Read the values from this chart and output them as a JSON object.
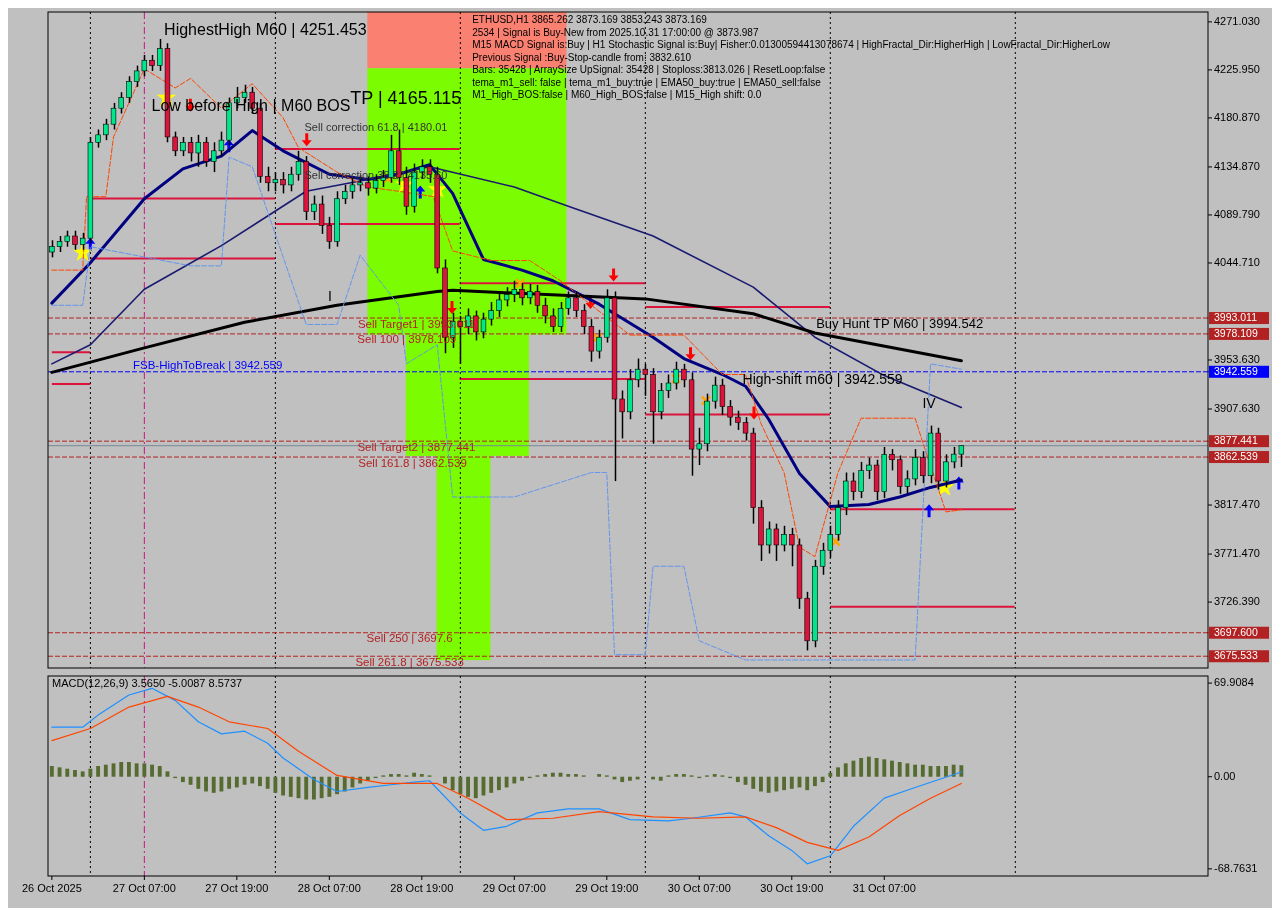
{
  "chart_data": [
    {
      "type": "candlestick",
      "title": "ETHUSD,H1  3865.262 3873.169 3853.243 3873.169",
      "x": [
        "2025-10-26T19:00",
        "2025-10-26T20:00",
        "2025-10-26T21:00",
        "2025-10-26T22:00",
        "2025-10-26T23:00",
        "2025-10-27T00:00",
        "2025-10-27T01:00",
        "2025-10-27T02:00",
        "2025-10-27T03:00",
        "2025-10-27T04:00",
        "2025-10-27T05:00",
        "2025-10-27T06:00",
        "2025-10-27T07:00",
        "2025-10-27T08:00",
        "2025-10-27T09:00",
        "2025-10-27T10:00",
        "2025-10-27T11:00",
        "2025-10-27T12:00",
        "2025-10-27T13:00",
        "2025-10-27T14:00",
        "2025-10-27T15:00",
        "2025-10-27T16:00",
        "2025-10-27T17:00",
        "2025-10-27T18:00",
        "2025-10-27T19:00",
        "2025-10-27T20:00",
        "2025-10-27T21:00",
        "2025-10-27T22:00",
        "2025-10-27T23:00",
        "2025-10-28T00:00",
        "2025-10-28T01:00",
        "2025-10-28T02:00",
        "2025-10-28T03:00",
        "2025-10-28T04:00",
        "2025-10-28T05:00",
        "2025-10-28T06:00",
        "2025-10-28T07:00",
        "2025-10-28T08:00",
        "2025-10-28T09:00",
        "2025-10-28T10:00",
        "2025-10-28T11:00",
        "2025-10-28T12:00",
        "2025-10-28T13:00",
        "2025-10-28T14:00",
        "2025-10-28T15:00",
        "2025-10-28T16:00",
        "2025-10-28T17:00",
        "2025-10-28T18:00",
        "2025-10-28T19:00",
        "2025-10-28T20:00",
        "2025-10-28T21:00",
        "2025-10-28T22:00",
        "2025-10-28T23:00",
        "2025-10-29T00:00",
        "2025-10-29T01:00",
        "2025-10-29T02:00",
        "2025-10-29T03:00",
        "2025-10-29T04:00",
        "2025-10-29T05:00",
        "2025-10-29T06:00",
        "2025-10-29T07:00",
        "2025-10-29T08:00",
        "2025-10-29T09:00",
        "2025-10-29T10:00",
        "2025-10-29T11:00",
        "2025-10-29T12:00",
        "2025-10-29T13:00",
        "2025-10-29T14:00",
        "2025-10-29T15:00",
        "2025-10-29T16:00",
        "2025-10-29T17:00",
        "2025-10-29T18:00",
        "2025-10-29T19:00",
        "2025-10-29T20:00",
        "2025-10-29T21:00",
        "2025-10-29T22:00",
        "2025-10-29T23:00",
        "2025-10-30T00:00",
        "2025-10-30T01:00",
        "2025-10-30T02:00",
        "2025-10-30T03:00",
        "2025-10-30T04:00",
        "2025-10-30T05:00",
        "2025-10-30T06:00",
        "2025-10-30T07:00",
        "2025-10-30T08:00",
        "2025-10-30T09:00",
        "2025-10-30T10:00",
        "2025-10-30T11:00",
        "2025-10-30T12:00",
        "2025-10-30T13:00",
        "2025-10-30T14:00",
        "2025-10-30T15:00",
        "2025-10-30T16:00",
        "2025-10-30T17:00",
        "2025-10-30T18:00",
        "2025-10-30T19:00",
        "2025-10-30T20:00",
        "2025-10-30T21:00",
        "2025-10-30T22:00",
        "2025-10-30T23:00",
        "2025-10-31T00:00",
        "2025-10-31T01:00",
        "2025-10-31T02:00",
        "2025-10-31T03:00",
        "2025-10-31T04:00",
        "2025-10-31T05:00",
        "2025-10-31T06:00",
        "2025-10-31T07:00",
        "2025-10-31T08:00",
        "2025-10-31T09:00",
        "2025-10-31T10:00",
        "2025-10-31T11:00",
        "2025-10-31T12:00",
        "2025-10-31T13:00",
        "2025-10-31T14:00",
        "2025-10-31T15:00",
        "2025-10-31T16:00",
        "2025-10-31T17:00"
      ],
      "ohlc": [
        [
          4055,
          4066,
          4050,
          4060
        ],
        [
          4060,
          4070,
          4055,
          4065
        ],
        [
          4065,
          4075,
          4060,
          4070
        ],
        [
          4070,
          4075,
          4057,
          4062
        ],
        [
          4062,
          4073,
          4057,
          4068
        ],
        [
          4068,
          4163,
          4063,
          4158
        ],
        [
          4158,
          4170,
          4153,
          4165
        ],
        [
          4165,
          4180,
          4160,
          4175
        ],
        [
          4175,
          4195,
          4170,
          4190
        ],
        [
          4190,
          4205,
          4185,
          4200
        ],
        [
          4200,
          4220,
          4195,
          4215
        ],
        [
          4215,
          4230,
          4210,
          4225
        ],
        [
          4225,
          4240,
          4220,
          4235
        ],
        [
          4235,
          4240,
          4225,
          4230
        ],
        [
          4230,
          4255,
          4225,
          4246
        ],
        [
          4246,
          4251,
          4158,
          4163
        ],
        [
          4163,
          4168,
          4145,
          4150
        ],
        [
          4150,
          4163,
          4145,
          4158
        ],
        [
          4158,
          4163,
          4140,
          4148
        ],
        [
          4148,
          4165,
          4135,
          4158
        ],
        [
          4158,
          4163,
          4135,
          4140
        ],
        [
          4140,
          4158,
          4130,
          4150
        ],
        [
          4150,
          4168,
          4145,
          4160
        ],
        [
          4160,
          4200,
          4155,
          4195
        ],
        [
          4195,
          4210,
          4190,
          4200
        ],
        [
          4200,
          4212,
          4195,
          4205
        ],
        [
          4205,
          4210,
          4185,
          4190
        ],
        [
          4190,
          4195,
          4120,
          4126
        ],
        [
          4126,
          4135,
          4112,
          4120
        ],
        [
          4120,
          4130,
          4112,
          4123
        ],
        [
          4123,
          4130,
          4110,
          4118
        ],
        [
          4118,
          4135,
          4112,
          4128
        ],
        [
          4128,
          4150,
          4122,
          4140
        ],
        [
          4140,
          4145,
          4085,
          4093
        ],
        [
          4093,
          4108,
          4085,
          4100
        ],
        [
          4100,
          4108,
          4072,
          4080
        ],
        [
          4080,
          4088,
          4058,
          4065
        ],
        [
          4065,
          4112,
          4060,
          4105
        ],
        [
          4105,
          4118,
          4100,
          4112
        ],
        [
          4112,
          4125,
          4105,
          4118
        ],
        [
          4118,
          4127,
          4112,
          4120
        ],
        [
          4120,
          4126,
          4108,
          4115
        ],
        [
          4115,
          4128,
          4110,
          4122
        ],
        [
          4122,
          4132,
          4116,
          4125
        ],
        [
          4125,
          4165,
          4120,
          4150
        ],
        [
          4150,
          4170,
          4118,
          4125
        ],
        [
          4125,
          4135,
          4090,
          4098
        ],
        [
          4098,
          4138,
          4092,
          4130
        ],
        [
          4130,
          4142,
          4124,
          4135
        ],
        [
          4135,
          4142,
          4120,
          4128
        ],
        [
          4128,
          4135,
          4035,
          4040
        ],
        [
          4040,
          4048,
          3960,
          3975
        ],
        [
          3975,
          3998,
          3965,
          3990
        ],
        [
          3990,
          3995,
          3950,
          3985
        ],
        [
          3985,
          4002,
          3978,
          3995
        ],
        [
          3995,
          4000,
          3972,
          3980
        ],
        [
          3980,
          3998,
          3974,
          3992
        ],
        [
          3992,
          4008,
          3986,
          4000
        ],
        [
          4000,
          4016,
          3994,
          4010
        ],
        [
          4010,
          4022,
          4004,
          4015
        ],
        [
          4015,
          4028,
          4008,
          4020
        ],
        [
          4020,
          4026,
          4005,
          4012
        ],
        [
          4012,
          4025,
          4006,
          4018
        ],
        [
          4018,
          4024,
          3998,
          4005
        ],
        [
          4005,
          4012,
          3988,
          3995
        ],
        [
          3995,
          4002,
          3980,
          3985
        ],
        [
          3985,
          4008,
          3980,
          4002
        ],
        [
          4002,
          4018,
          3996,
          4012
        ],
        [
          4012,
          4018,
          3994,
          4000
        ],
        [
          4000,
          4006,
          3978,
          3985
        ],
        [
          3985,
          3992,
          3952,
          3962
        ],
        [
          3962,
          3982,
          3955,
          3975
        ],
        [
          3975,
          4020,
          3970,
          4012
        ],
        [
          4012,
          4018,
          3840,
          3917
        ],
        [
          3917,
          3925,
          3880,
          3905
        ],
        [
          3905,
          3945,
          3898,
          3935
        ],
        [
          3935,
          3955,
          3928,
          3945
        ],
        [
          3945,
          3950,
          3920,
          3940
        ],
        [
          3940,
          3946,
          3875,
          3905
        ],
        [
          3905,
          3932,
          3898,
          3925
        ],
        [
          3925,
          3940,
          3918,
          3932
        ],
        [
          3932,
          3952,
          3926,
          3945
        ],
        [
          3945,
          3950,
          3928,
          3935
        ],
        [
          3935,
          3942,
          3845,
          3870
        ],
        [
          3870,
          3890,
          3855,
          3875
        ],
        [
          3875,
          3922,
          3868,
          3915
        ],
        [
          3915,
          3938,
          3908,
          3930
        ],
        [
          3930,
          3936,
          3902,
          3910
        ],
        [
          3910,
          3916,
          3892,
          3900
        ],
        [
          3900,
          3906,
          3888,
          3895
        ],
        [
          3895,
          3900,
          3878,
          3885
        ],
        [
          3885,
          3890,
          3800,
          3815
        ],
        [
          3815,
          3822,
          3765,
          3780
        ],
        [
          3780,
          3802,
          3772,
          3795
        ],
        [
          3795,
          3800,
          3765,
          3780
        ],
        [
          3780,
          3798,
          3774,
          3790
        ],
        [
          3790,
          3796,
          3760,
          3780
        ],
        [
          3780,
          3786,
          3720,
          3730
        ],
        [
          3730,
          3736,
          3681,
          3690
        ],
        [
          3690,
          3766,
          3684,
          3760
        ],
        [
          3760,
          3782,
          3752,
          3775
        ],
        [
          3775,
          3798,
          3768,
          3790
        ],
        [
          3790,
          3822,
          3784,
          3815
        ],
        [
          3815,
          3848,
          3808,
          3840
        ],
        [
          3840,
          3848,
          3822,
          3830
        ],
        [
          3830,
          3858,
          3824,
          3850
        ],
        [
          3850,
          3862,
          3842,
          3855
        ],
        [
          3855,
          3860,
          3822,
          3830
        ],
        [
          3830,
          3872,
          3824,
          3865
        ],
        [
          3865,
          3870,
          3850,
          3860
        ],
        [
          3860,
          3864,
          3828,
          3835
        ],
        [
          3835,
          3850,
          3828,
          3842
        ],
        [
          3842,
          3870,
          3836,
          3862
        ],
        [
          3862,
          3868,
          3838,
          3845
        ],
        [
          3845,
          3892,
          3838,
          3885
        ],
        [
          3885,
          3890,
          3832,
          3840
        ],
        [
          3840,
          3865,
          3834,
          3858
        ],
        [
          3858,
          3872,
          3852,
          3865.262
        ],
        [
          3865.262,
          3873.169,
          3853.243,
          3873.169
        ]
      ],
      "series": [
        {
          "type": "line",
          "color": "#000080",
          "x": [
            "2025-10-26T19:00",
            "2025-10-27T00:00",
            "2025-10-27T07:00",
            "2025-10-27T12:00",
            "2025-10-27T17:00",
            "2025-10-27T21:00",
            "2025-10-28T01:00",
            "2025-10-28T07:00",
            "2025-10-28T12:00",
            "2025-10-28T16:00",
            "2025-10-28T20:00",
            "2025-10-28T23:00",
            "2025-10-29T03:00",
            "2025-10-29T08:00",
            "2025-10-29T12:00",
            "2025-10-29T18:00",
            "2025-10-30T01:00",
            "2025-10-30T05:00",
            "2025-10-30T10:00",
            "2025-10-30T13:00",
            "2025-10-30T16:00",
            "2025-10-30T20:00",
            "2025-10-31T00:00",
            "2025-10-31T05:00",
            "2025-10-31T09:00",
            "2025-10-31T13:00",
            "2025-10-31T17:00"
          ],
          "values": [
            4007,
            4045,
            4105,
            4133,
            4145,
            4169,
            4150,
            4128,
            4123,
            4128,
            4137,
            4110,
            4048,
            4038,
            4028,
            4006,
            3975,
            3955,
            3940,
            3929,
            3898,
            3847,
            3816,
            3818,
            3825,
            3834,
            3841
          ]
        },
        {
          "type": "line",
          "color": "#191970",
          "x": [
            "2025-10-26T19:00",
            "2025-10-27T00:00",
            "2025-10-27T07:00",
            "2025-10-27T17:00",
            "2025-10-28T04:00",
            "2025-10-28T12:00",
            "2025-10-28T20:00",
            "2025-10-29T07:00",
            "2025-10-29T14:00",
            "2025-10-30T01:00",
            "2025-10-30T14:00",
            "2025-10-30T22:00",
            "2025-10-31T07:00",
            "2025-10-31T17:00"
          ],
          "values": [
            3950,
            3968,
            4020,
            4061,
            4112,
            4123,
            4135,
            4116,
            4098,
            4070,
            4022,
            3975,
            3939,
            3909
          ]
        },
        {
          "type": "line",
          "color": "#000000",
          "x": [
            "2025-10-26T19:00",
            "2025-10-27T07:00",
            "2025-10-27T20:00",
            "2025-10-28T08:00",
            "2025-10-28T21:00",
            "2025-10-28T23:00",
            "2025-10-30T00:00",
            "2025-10-30T14:00",
            "2025-10-30T22:00",
            "2025-10-31T17:00"
          ],
          "values": [
            3942,
            3965,
            3989,
            4005,
            4018,
            4019,
            4011,
            3997,
            3979,
            3953
          ]
        },
        {
          "type": "line",
          "color": "#ff4500",
          "line_style": "dashed",
          "x": [
            "2025-10-26T19:00",
            "2025-10-26T23:00",
            "2025-10-26T23:30",
            "2025-10-27T02:00",
            "2025-10-27T03:00",
            "2025-10-27T07:00",
            "2025-10-27T11:00",
            "2025-10-27T13:00",
            "2025-10-27T17:00",
            "2025-10-27T21:00",
            "2025-10-28T01:00",
            "2025-10-28T03:00",
            "2025-10-28T08:00",
            "2025-10-28T12:00",
            "2025-10-28T16:00",
            "2025-10-28T20:30",
            "2025-10-28T23:00",
            "2025-10-29T04:00",
            "2025-10-29T09:00",
            "2025-10-29T13:00",
            "2025-10-29T17:00",
            "2025-10-29T22:00",
            "2025-10-30T05:00",
            "2025-10-30T10:00",
            "2025-10-30T13:00",
            "2025-10-30T15:00",
            "2025-10-30T18:00",
            "2025-10-30T20:00",
            "2025-10-30T22:00",
            "2025-10-31T01:00",
            "2025-10-31T04:00",
            "2025-10-31T11:00",
            "2025-10-31T12:00",
            "2025-10-31T15:00",
            "2025-10-31T17:00"
          ],
          "values": [
            4038,
            4038,
            4107,
            4107,
            4163,
            4227,
            4209,
            4218,
            4190,
            4213,
            4181,
            4153,
            4130,
            4116,
            4112,
            4107,
            4056,
            4047,
            4047,
            4028,
            4005,
            3977,
            3977,
            3940,
            3940,
            3894,
            3848,
            3778,
            3769,
            3848,
            3899,
            3899,
            3876,
            3811,
            3813
          ]
        },
        {
          "type": "line",
          "color": "#6495ed",
          "line_style": "dashed",
          "x": [
            "2025-10-26T19:00",
            "2025-10-26T23:00",
            "2025-10-27T00:00",
            "2025-10-27T13:00",
            "2025-10-27T17:00",
            "2025-10-27T18:00",
            "2025-10-27T21:00",
            "2025-10-28T04:00",
            "2025-10-28T08:00",
            "2025-10-28T11:00",
            "2025-10-28T16:00",
            "2025-10-28T17:00",
            "2025-10-28T21:00",
            "2025-10-28T23:00",
            "2025-10-29T07:00",
            "2025-10-29T17:00",
            "2025-10-29T19:00",
            "2025-10-29T20:00",
            "2025-10-30T00:00",
            "2025-10-30T01:00",
            "2025-10-30T05:00",
            "2025-10-30T07:00",
            "2025-10-30T13:00",
            "2025-10-31T11:00",
            "2025-10-31T13:00",
            "2025-10-31T17:00"
          ],
          "values": [
            4005,
            4005,
            4060,
            4042,
            4042,
            4144,
            4135,
            3987,
            3987,
            4052,
            4005,
            3950,
            3968,
            3825,
            3825,
            3848,
            3848,
            3677,
            3677,
            3760,
            3760,
            3690,
            3672,
            3672,
            3950,
            3945
          ]
        }
      ],
      "xlim": [
        "2025-10-26T18:30",
        "2025-11-02T01:00"
      ],
      "ylim": [
        3664.5,
        4280.3
      ],
      "yticks": [
        {
          "value": 4271.03,
          "label": "4271.030"
        },
        {
          "value": 4225.95,
          "label": "4225.950"
        },
        {
          "value": 4180.87,
          "label": "4180.870"
        },
        {
          "value": 4134.87,
          "label": "4134.870"
        },
        {
          "value": 4089.79,
          "label": "4089.790"
        },
        {
          "value": 4044.71,
          "label": "4044.710"
        },
        3993.011,
        3978.109,
        {
          "value": 3953.63,
          "label": "3953.630"
        },
        3942.559,
        {
          "value": 3907.63,
          "label": "3907.630"
        },
        3877.441,
        3862.539,
        {
          "value": 3817.47,
          "label": "3817.470"
        },
        {
          "value": 3771.47,
          "label": "3771.470"
        },
        {
          "value": 3726.39,
          "label": "3726.390"
        },
        {
          "value": 3697.6,
          "label": "3697.600"
        },
        3675.533
      ],
      "tick_labels": "y",
      "ref_lines": [
        {
          "axis": "y",
          "value": 3993.011,
          "label": "Sell Target1 | 3993.011",
          "color": "#b22222",
          "line_style": "dashed"
        },
        {
          "axis": "y",
          "value": 3978.109,
          "label": "Sell 100 | 3978.109",
          "color": "#b22222",
          "line_style": "dashed"
        },
        {
          "axis": "y",
          "value": 3942.559,
          "label": "FSB-HighToBreak | 3942.559",
          "color": "#0000ff",
          "line_style": "dashed"
        },
        {
          "axis": "y",
          "value": 3877.441,
          "label": "Sell Target2 | 3877.441",
          "color": "#b22222",
          "line_style": "dashed"
        },
        {
          "axis": "y",
          "value": 3862.539,
          "label": "Sell 161.8 | 3862.539",
          "color": "#b22222",
          "line_style": "dashed"
        },
        {
          "axis": "y",
          "value": 3697.6,
          "label": "Sell  250 | 3697.6",
          "color": "#b22222",
          "line_style": "dashed"
        },
        {
          "axis": "y",
          "value": 3675.533,
          "label": "Sell  261.8 | 3675.533",
          "color": "#b22222",
          "line_style": "dashed"
        },
        {
          "axis": "y",
          "value": 3873.169,
          "color": "#778899",
          "line_style": "solid"
        },
        {
          "axis": "x",
          "value": "2025-10-27T00:00",
          "color": "#000000",
          "line_style": "dotted"
        },
        {
          "axis": "x",
          "value": "2025-10-27T07:00",
          "color": "#c71585",
          "line_style": "dashdot"
        },
        {
          "axis": "x",
          "value": "2025-10-28T00:00",
          "color": "#000000",
          "line_style": "dotted"
        },
        {
          "axis": "x",
          "value": "2025-10-29T00:00",
          "color": "#000000",
          "line_style": "dotted"
        },
        {
          "axis": "x",
          "value": "2025-10-30T00:00",
          "color": "#000000",
          "line_style": "dotted"
        },
        {
          "axis": "x",
          "value": "2025-10-31T00:00",
          "color": "#000000",
          "line_style": "dotted"
        },
        {
          "axis": "x",
          "value": "2025-11-01T00:00",
          "color": "#000000",
          "line_style": "dotted"
        }
      ],
      "annotations": [
        "2534 | Signal is Buy-New from 2025.10.31 17:00:00 @ 3873.987",
        "M15 MACD Signal is:Buy | H1 Stochastic Signal is:Buy| Fisher:0.01300594413078674 | HighFractal_Dir:HigherHigh | LowFractal_Dir:HigherLow",
        "Previous Signal :Buy-Stop-candle from: 3832.610",
        "Bars: 35428 | ArraySize UpSignal: 35428 | Stoploss:3813.026 | ResetLoop:false",
        "tema_m1_sell: false | tema_m1_buy:true | EMA50_buy:true | EMA50_sell:false",
        "M1_High_BOS:false | M60_High_BOS:false | M15_High shift: 0.0",
        "HighestHigh M60 | 4251.453",
        "Low before High | M60 BOS",
        "TP | 4165.115",
        "Sell correction 61.8 | 4180.01",
        "Sell correction 38.2 | 4135.60",
        "I",
        "IV",
        {
          "text": "Buy Hunt TP M60 | 3994.542",
          "x": "2025-10-31T09:00",
          "y": 3994.542
        },
        {
          "text": "High-shift m60 | 3942.559",
          "x": "2025-10-30T23:00",
          "y": 3942.559
        }
      ]
    },
    {
      "type": "bar",
      "title": "MACD(12,26,9) 3.5650 -5.0087 8.5737",
      "x": [
        "2025-10-26T19:00",
        "2025-10-26T20:00",
        "2025-10-26T21:00",
        "2025-10-26T22:00",
        "2025-10-26T23:00",
        "2025-10-27T00:00",
        "2025-10-27T01:00",
        "2025-10-27T02:00",
        "2025-10-27T03:00",
        "2025-10-27T04:00",
        "2025-10-27T05:00",
        "2025-10-27T06:00",
        "2025-10-27T07:00",
        "2025-10-27T08:00",
        "2025-10-27T09:00",
        "2025-10-27T10:00",
        "2025-10-27T11:00",
        "2025-10-27T12:00",
        "2025-10-27T13:00",
        "2025-10-27T14:00",
        "2025-10-27T15:00",
        "2025-10-27T16:00",
        "2025-10-27T17:00",
        "2025-10-27T18:00",
        "2025-10-27T19:00",
        "2025-10-27T20:00",
        "2025-10-27T21:00",
        "2025-10-27T22:00",
        "2025-10-27T23:00",
        "2025-10-28T00:00",
        "2025-10-28T01:00",
        "2025-10-28T02:00",
        "2025-10-28T03:00",
        "2025-10-28T04:00",
        "2025-10-28T05:00",
        "2025-10-28T06:00",
        "2025-10-28T07:00",
        "2025-10-28T08:00",
        "2025-10-28T09:00",
        "2025-10-28T10:00",
        "2025-10-28T11:00",
        "2025-10-28T12:00",
        "2025-10-28T13:00",
        "2025-10-28T14:00",
        "2025-10-28T15:00",
        "2025-10-28T16:00",
        "2025-10-28T17:00",
        "2025-10-28T18:00",
        "2025-10-28T19:00",
        "2025-10-28T20:00",
        "2025-10-28T21:00",
        "2025-10-28T22:00",
        "2025-10-28T23:00",
        "2025-10-29T00:00",
        "2025-10-29T01:00",
        "2025-10-29T02:00",
        "2025-10-29T03:00",
        "2025-10-29T04:00",
        "2025-10-29T05:00",
        "2025-10-29T06:00",
        "2025-10-29T07:00",
        "2025-10-29T08:00",
        "2025-10-29T09:00",
        "2025-10-29T10:00",
        "2025-10-29T11:00",
        "2025-10-29T12:00",
        "2025-10-29T13:00",
        "2025-10-29T14:00",
        "2025-10-29T15:00",
        "2025-10-29T16:00",
        "2025-10-29T17:00",
        "2025-10-29T18:00",
        "2025-10-29T19:00",
        "2025-10-29T20:00",
        "2025-10-29T21:00",
        "2025-10-29T22:00",
        "2025-10-29T23:00",
        "2025-10-30T00:00",
        "2025-10-30T01:00",
        "2025-10-30T02:00",
        "2025-10-30T03:00",
        "2025-10-30T04:00",
        "2025-10-30T05:00",
        "2025-10-30T06:00",
        "2025-10-30T07:00",
        "2025-10-30T08:00",
        "2025-10-30T09:00",
        "2025-10-30T10:00",
        "2025-10-30T11:00",
        "2025-10-30T12:00",
        "2025-10-30T13:00",
        "2025-10-30T14:00",
        "2025-10-30T15:00",
        "2025-10-30T16:00",
        "2025-10-30T17:00",
        "2025-10-30T18:00",
        "2025-10-30T19:00",
        "2025-10-30T20:00",
        "2025-10-30T21:00",
        "2025-10-30T22:00",
        "2025-10-30T23:00",
        "2025-10-31T00:00",
        "2025-10-31T01:00",
        "2025-10-31T02:00",
        "2025-10-31T03:00",
        "2025-10-31T04:00",
        "2025-10-31T05:00",
        "2025-10-31T06:00",
        "2025-10-31T07:00",
        "2025-10-31T08:00",
        "2025-10-31T09:00",
        "2025-10-31T10:00",
        "2025-10-31T11:00",
        "2025-10-31T12:00",
        "2025-10-31T13:00",
        "2025-10-31T14:00",
        "2025-10-31T15:00",
        "2025-10-31T16:00",
        "2025-10-31T17:00"
      ],
      "series": [
        {
          "type": "bar",
          "color": "#556b2f",
          "values": [
            8,
            7,
            6,
            5,
            4,
            6,
            8,
            9,
            10,
            11,
            11,
            10,
            10,
            9,
            8,
            4,
            -1,
            -4,
            -6,
            -9,
            -11,
            -12,
            -11,
            -9,
            -8,
            -6,
            -5,
            -7,
            -9,
            -12,
            -14,
            -15,
            -16,
            -17,
            -17,
            -16,
            -15,
            -13,
            -11,
            -8,
            -5,
            -3,
            -1,
            1,
            2,
            2,
            1,
            3,
            2,
            1,
            0,
            -5,
            -10,
            -13,
            -15,
            -16,
            -14,
            -12,
            -10,
            -8,
            -5,
            -3,
            -1,
            1,
            2,
            3,
            3,
            2,
            2,
            1,
            0,
            2,
            1,
            -2,
            -4,
            -3,
            -2,
            0,
            -2,
            -3,
            1,
            2,
            2,
            1,
            -1,
            1,
            2,
            1,
            -1,
            -4,
            -6,
            -9,
            -11,
            -12,
            -11,
            -10,
            -9,
            -8,
            -10,
            -7,
            -4,
            3,
            7,
            10,
            12,
            14,
            15,
            14,
            13,
            12,
            11,
            10,
            9,
            9,
            8,
            8,
            8,
            9,
            8.5737
          ]
        },
        {
          "type": "line",
          "color": "#1e90ff",
          "x": [
            "2025-10-26T19:00",
            "2025-10-26T23:00",
            "2025-10-27T01:00",
            "2025-10-27T05:00",
            "2025-10-27T08:00",
            "2025-10-27T11:00",
            "2025-10-27T14:00",
            "2025-10-27T17:00",
            "2025-10-27T20:00",
            "2025-10-27T23:00",
            "2025-10-28T01:00",
            "2025-10-28T05:00",
            "2025-10-28T08:00",
            "2025-10-28T12:00",
            "2025-10-28T15:00",
            "2025-10-28T18:00",
            "2025-10-28T20:00",
            "2025-10-29T00:00",
            "2025-10-29T03:00",
            "2025-10-29T06:00",
            "2025-10-29T10:00",
            "2025-10-29T14:00",
            "2025-10-29T18:00",
            "2025-10-29T22:00",
            "2025-10-30T03:00",
            "2025-10-30T06:00",
            "2025-10-30T11:00",
            "2025-10-30T13:00",
            "2025-10-30T16:00",
            "2025-10-30T19:00",
            "2025-10-30T21:00",
            "2025-10-31T00:00",
            "2025-10-31T03:00",
            "2025-10-31T07:00",
            "2025-10-31T11:00",
            "2025-10-31T17:00"
          ],
          "values": [
            37,
            37,
            46,
            61,
            66,
            57,
            41,
            32,
            34,
            25,
            14,
            -2,
            -11,
            -8,
            -6,
            -4,
            -3,
            -27,
            -40,
            -37,
            -27,
            -24,
            -24,
            -32,
            -33,
            -31,
            -27,
            -30,
            -44,
            -55,
            -65,
            -59,
            -37,
            -16,
            -8,
            3.565
          ]
        },
        {
          "type": "line",
          "color": "#ff4500",
          "x": [
            "2025-10-26T19:00",
            "2025-10-27T00:00",
            "2025-10-27T05:00",
            "2025-10-27T10:00",
            "2025-10-27T14:00",
            "2025-10-27T18:00",
            "2025-10-27T23:00",
            "2025-10-28T03:00",
            "2025-10-28T08:00",
            "2025-10-28T14:00",
            "2025-10-28T21:00",
            "2025-10-29T01:00",
            "2025-10-29T06:00",
            "2025-10-29T12:00",
            "2025-10-29T18:00",
            "2025-10-30T01:00",
            "2025-10-30T07:00",
            "2025-10-30T13:00",
            "2025-10-30T17:00",
            "2025-10-30T21:00",
            "2025-10-31T01:00",
            "2025-10-31T05:00",
            "2025-10-31T09:00",
            "2025-10-31T13:00",
            "2025-10-31T17:00"
          ],
          "values": [
            27,
            36,
            52,
            60,
            52,
            41,
            36,
            19,
            1,
            -5,
            -5,
            -16,
            -32,
            -31,
            -26,
            -30,
            -31,
            -30,
            -38,
            -49,
            -55,
            -45,
            -29,
            -16,
            -5.0087
          ]
        }
      ],
      "xlim": [
        "2025-10-26T18:30",
        "2025-11-02T01:00"
      ],
      "xticks": [
        {
          "value": "2025-10-26T19:00",
          "label": "26 Oct 2025"
        },
        {
          "value": "2025-10-27T07:00",
          "label": "27 Oct 07:00"
        },
        {
          "value": "2025-10-27T19:00",
          "label": "27 Oct 19:00"
        },
        {
          "value": "2025-10-28T07:00",
          "label": "28 Oct 07:00"
        },
        {
          "value": "2025-10-28T19:00",
          "label": "28 Oct 19:00"
        },
        {
          "value": "2025-10-29T07:00",
          "label": "29 Oct 07:00"
        },
        {
          "value": "2025-10-29T19:00",
          "label": "29 Oct 19:00"
        },
        {
          "value": "2025-10-30T07:00",
          "label": "30 Oct 07:00"
        },
        {
          "value": "2025-10-30T19:00",
          "label": "30 Oct 19:00"
        },
        {
          "value": "2025-10-31T07:00",
          "label": "31 Oct 07:00"
        }
      ],
      "ylim": [
        -74.1,
        75.2
      ],
      "yticks": [
        69.9084,
        {
          "value": 0,
          "label": "0.00"
        },
        -68.7631
      ],
      "ref_lines": [
        {
          "axis": "x",
          "value": "2025-10-27T00:00",
          "color": "#000000",
          "line_style": "dotted"
        },
        {
          "axis": "x",
          "value": "2025-10-27T07:00",
          "color": "#c71585",
          "line_style": "dashdot"
        },
        {
          "axis": "x",
          "value": "2025-10-28T00:00",
          "color": "#000000",
          "line_style": "dotted"
        },
        {
          "axis": "x",
          "value": "2025-10-29T00:00",
          "color": "#000000",
          "line_style": "dotted"
        },
        {
          "axis": "x",
          "value": "2025-10-30T00:00",
          "color": "#000000",
          "line_style": "dotted"
        },
        {
          "axis": "x",
          "value": "2025-10-31T00:00",
          "color": "#000000",
          "line_style": "dotted"
        },
        {
          "axis": "x",
          "value": "2025-11-01T00:00",
          "color": "#000000",
          "line_style": "dotted"
        }
      ]
    }
  ]
}
